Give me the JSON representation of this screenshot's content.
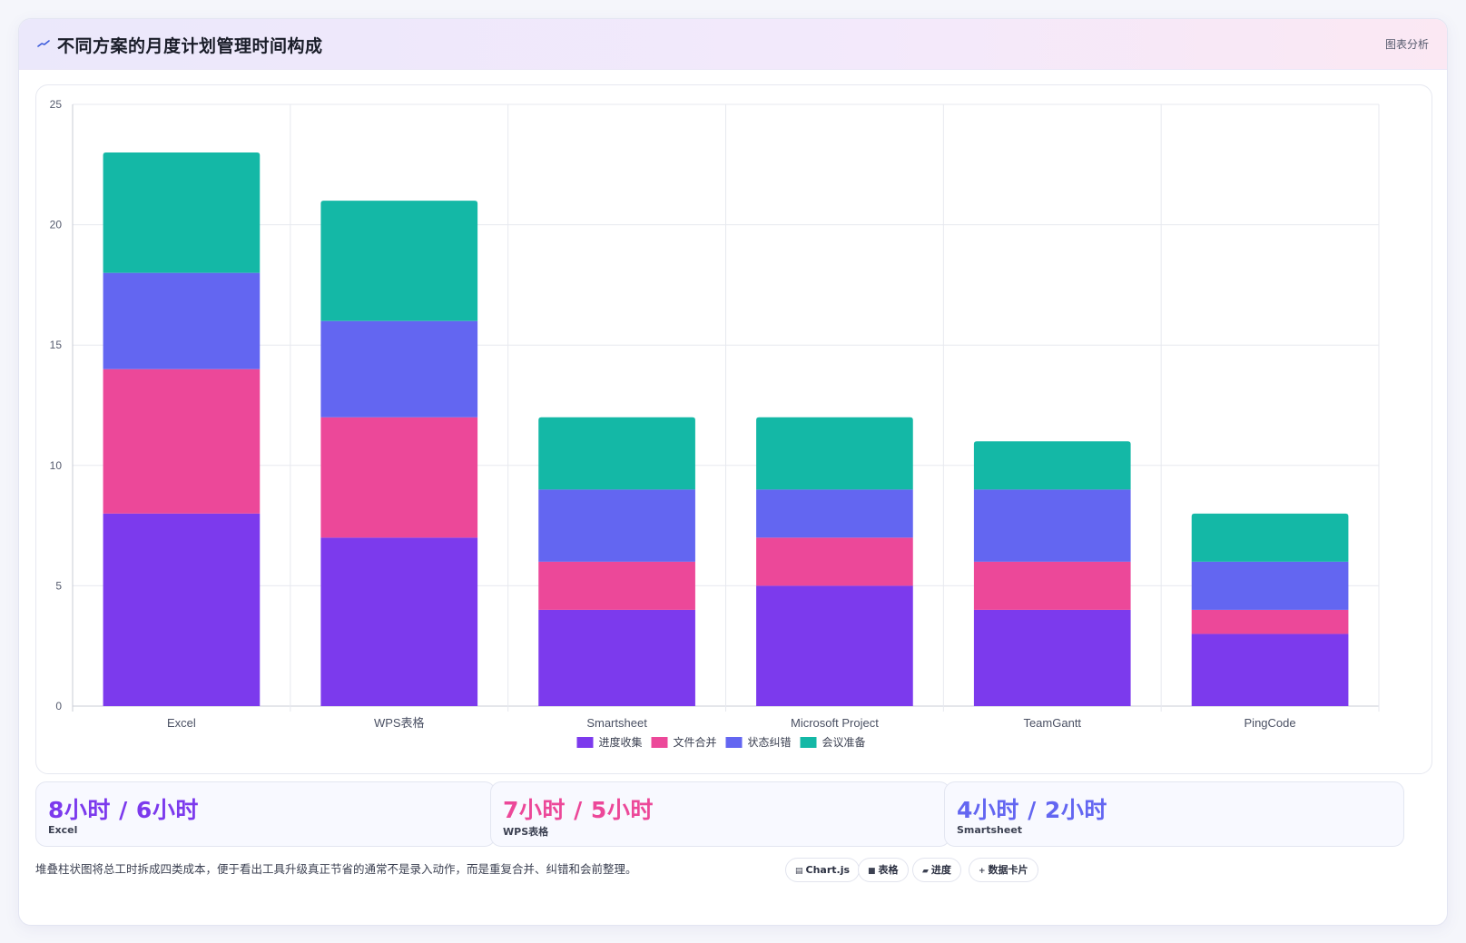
{
  "header": {
    "title": "不同方案的月度计划管理时间构成",
    "icon": "chart-trend-icon",
    "link_label": "图表分析"
  },
  "chart_data": {
    "type": "bar",
    "stacked": true,
    "categories": [
      "Excel",
      "WPS表格",
      "Smartsheet",
      "Microsoft Project",
      "TeamGantt",
      "PingCode"
    ],
    "series": [
      {
        "name": "进度收集",
        "color": "#7c3aed",
        "values": [
          8,
          7,
          4,
          5,
          4,
          3
        ]
      },
      {
        "name": "文件合并",
        "color": "#ec4899",
        "values": [
          6,
          5,
          2,
          2,
          2,
          1
        ]
      },
      {
        "name": "状态纠错",
        "color": "#6366f1",
        "values": [
          4,
          4,
          3,
          2,
          3,
          2
        ]
      },
      {
        "name": "会议准备",
        "color": "#14b8a6",
        "values": [
          5,
          5,
          3,
          3,
          2,
          2
        ]
      }
    ],
    "ylim": [
      0,
      25
    ],
    "yticks": [
      0,
      5,
      10,
      15,
      20,
      25
    ],
    "grid": true,
    "legend": "bottom"
  },
  "stats": [
    {
      "value": "8小时 / 6小时",
      "label": "Excel",
      "color": "#7c3aed"
    },
    {
      "value": "7小时 / 5小时",
      "label": "WPS表格",
      "color": "#ec4899"
    },
    {
      "value": "4小时 / 2小时",
      "label": "Smartsheet",
      "color": "#6366f1"
    }
  ],
  "note": "堆叠柱状图将总工时拆成四类成本，便于看出工具升级真正节省的通常不是录入动作，而是重复合并、纠错和会前整理。",
  "chips": [
    {
      "icon": "▤",
      "label": "Chart.js"
    },
    {
      "icon": "■",
      "label": "表格"
    },
    {
      "icon": "▰",
      "label": "进度"
    },
    {
      "icon": "+",
      "label": "数据卡片"
    }
  ]
}
